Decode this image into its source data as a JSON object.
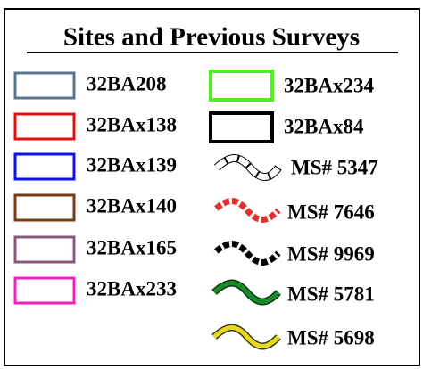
{
  "legend": {
    "title": "Sites and Previous Surveys",
    "sites": [
      "32BA208",
      "32BAx138",
      "32BAx139",
      "32BAx140",
      "32BAx165",
      "32BAx233",
      "32BAx234",
      "32BAx84"
    ],
    "surveys": [
      "MS# 5347",
      "MS# 7646",
      "MS# 9969",
      "MS# 5781",
      "MS# 5698"
    ]
  }
}
